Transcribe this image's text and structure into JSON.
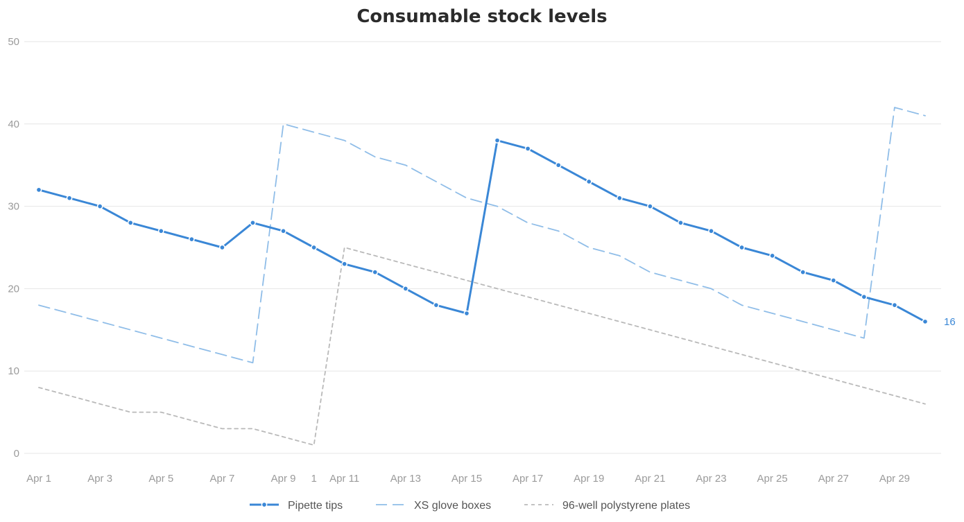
{
  "chart_data": {
    "type": "line",
    "title": "Consumable stock levels",
    "xlabel": "",
    "ylabel": "",
    "ylim": [
      0,
      50
    ],
    "yticks": [
      0,
      10,
      20,
      30,
      40,
      50
    ],
    "grid": true,
    "legend_position": "bottom",
    "x": [
      "Apr 1",
      "Apr 2",
      "Apr 3",
      "Apr 4",
      "Apr 5",
      "Apr 6",
      "Apr 7",
      "Apr 8",
      "Apr 9",
      "Apr 10",
      "Apr 11",
      "Apr 12",
      "Apr 13",
      "Apr 14",
      "Apr 15",
      "Apr 16",
      "Apr 17",
      "Apr 18",
      "Apr 19",
      "Apr 20",
      "Apr 21",
      "Apr 22",
      "Apr 23",
      "Apr 24",
      "Apr 25",
      "Apr 26",
      "Apr 27",
      "Apr 28",
      "Apr 29",
      "Apr 30"
    ],
    "xtick_labels": [
      "Apr 1",
      "Apr 3",
      "Apr 5",
      "Apr 7",
      "Apr 9",
      "Apr 11",
      "Apr 13",
      "Apr 15",
      "Apr 17",
      "Apr 19",
      "Apr 21",
      "Apr 23",
      "Apr 25",
      "Apr 27",
      "Apr 29"
    ],
    "series": [
      {
        "name": "Pipette tips",
        "color": "#3a87d6",
        "style": "solid-markers",
        "values": [
          32,
          31,
          30,
          28,
          27,
          26,
          25,
          28,
          27,
          25,
          23,
          22,
          20,
          18,
          17,
          38,
          37,
          35,
          33,
          31,
          30,
          28,
          27,
          25,
          24,
          22,
          21,
          19,
          18,
          16
        ]
      },
      {
        "name": "XS glove boxes",
        "color": "#8fbde8",
        "style": "long-dash",
        "values": [
          18,
          17,
          16,
          15,
          14,
          13,
          12,
          11,
          40,
          39,
          38,
          36,
          35,
          33,
          31,
          30,
          28,
          27,
          25,
          24,
          22,
          21,
          20,
          18,
          17,
          16,
          15,
          14,
          42,
          41
        ]
      },
      {
        "name": "96-well polystyrene plates",
        "color": "#b9b9b9",
        "style": "short-dash",
        "values": [
          8,
          7,
          6,
          5,
          5,
          4,
          3,
          3,
          2,
          1,
          25,
          24,
          23,
          22,
          21,
          20,
          19,
          18,
          17,
          16,
          15,
          14,
          13,
          12,
          11,
          10,
          9,
          8,
          7,
          6
        ]
      }
    ],
    "annotations": [
      {
        "text": "1",
        "series": "96-well polystyrene plates",
        "x": "Apr 10",
        "y": 1
      },
      {
        "text": "16",
        "series": "Pipette tips",
        "x": "Apr 30",
        "y": 16
      }
    ]
  }
}
